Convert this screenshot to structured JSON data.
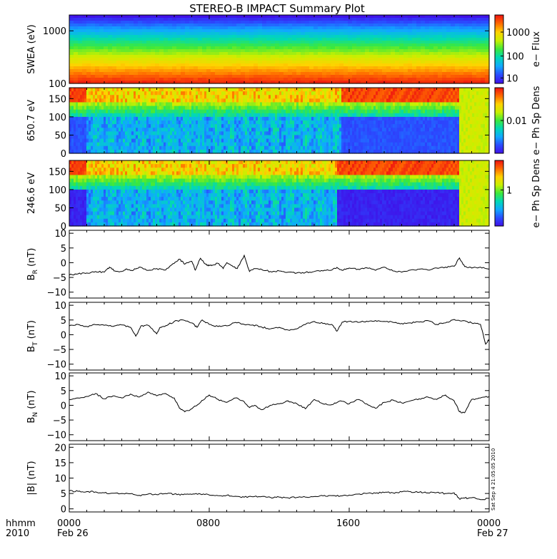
{
  "title": "STEREO-B IMPACT Summary Plot",
  "footer": {
    "row_label_1": "hhmm",
    "row_label_2": "2010",
    "tick_labels": [
      "0000",
      "0800",
      "1600",
      "0000"
    ],
    "date_labels": [
      "Feb 26",
      "Feb 27"
    ]
  },
  "timestamp": "Sat Sep  4 21:05:05 2010",
  "colors": {
    "line": "#000000",
    "colormap": [
      "#ee1111",
      "#ff6a00",
      "#ffd200",
      "#c8f000",
      "#3ce83c",
      "#00d8b8",
      "#10a8ff",
      "#2a4cff",
      "#4010e8"
    ]
  },
  "chart_data": [
    {
      "type": "heatmap",
      "name": "swea",
      "ylabel": "SWEA (eV)",
      "cbar_label": "e− Flux",
      "yscale": "log",
      "ylim": [
        100,
        2000
      ],
      "yticks": [
        "1000",
        "100"
      ],
      "ytick_values": [
        1000,
        100
      ],
      "cbar_ticks": [
        "1000",
        "100",
        "10"
      ],
      "cbar_tick_fracs": [
        0.25,
        0.6,
        0.92
      ],
      "bands_top_to_bottom": [
        0.0,
        0.1,
        0.24,
        0.38,
        0.5,
        0.62,
        0.74,
        0.84,
        0.92,
        0.97
      ]
    },
    {
      "type": "heatmap",
      "name": "pad650",
      "ylabel": "650.7 eV",
      "cbar_label": "e− Ph Sp Dens",
      "ylim": [
        0,
        180
      ],
      "yticks": [
        "150",
        "100",
        "50",
        "0"
      ],
      "ytick_values": [
        150,
        100,
        50,
        0
      ],
      "cbar_ticks": [
        "0.01"
      ],
      "cbar_tick_fracs": [
        0.5
      ],
      "quiet_intervals_hours": [
        [
          0.0,
          1.0
        ],
        [
          15.5,
          22.3
        ]
      ]
    },
    {
      "type": "heatmap",
      "name": "pad246",
      "ylabel": "246.6 eV",
      "cbar_label": "e− Ph Sp Dens",
      "ylim": [
        0,
        180
      ],
      "yticks": [
        "150",
        "100",
        "50",
        "0"
      ],
      "ytick_values": [
        150,
        100,
        50,
        0
      ],
      "cbar_ticks": [
        "1"
      ],
      "cbar_tick_fracs": [
        0.45
      ],
      "quiet_intervals_hours": [
        [
          0.0,
          1.0
        ],
        [
          15.3,
          22.3
        ]
      ]
    },
    {
      "type": "line",
      "name": "br",
      "ylabel_main": "B",
      "ylabel_sub": "R",
      "ylabel_unit": " (nT)",
      "ylim": [
        -12,
        11
      ],
      "yticks": [
        "10",
        "5",
        "0",
        "−5",
        "−10"
      ],
      "ytick_values": [
        10,
        5,
        0,
        -5,
        -10
      ],
      "x_hours": [
        0,
        0.5,
        1,
        1.5,
        2,
        2.3,
        2.6,
        3,
        3.3,
        3.6,
        4,
        4.5,
        5,
        5.5,
        6,
        6.3,
        6.6,
        7,
        7.2,
        7.5,
        7.8,
        8,
        8.2,
        8.5,
        8.8,
        9,
        9.3,
        9.6,
        10,
        10.3,
        10.6,
        11,
        11.5,
        12,
        12.5,
        13,
        13.5,
        14,
        14.5,
        15,
        15.3,
        15.6,
        16,
        16.5,
        17,
        17.5,
        18,
        18.5,
        19,
        19.5,
        20,
        20.5,
        21,
        21.5,
        22,
        22.3,
        22.6,
        23,
        23.5,
        24
      ],
      "values": [
        -4.2,
        -3.8,
        -3.5,
        -3,
        -3.2,
        -1.5,
        -2.8,
        -3,
        -2.2,
        -2.7,
        -1.5,
        -2.6,
        -2,
        -2.5,
        -0.2,
        1.2,
        -0.5,
        0.5,
        -2.5,
        1.5,
        -0.5,
        -1,
        -0.8,
        -0.2,
        -2,
        0,
        -1,
        -2,
        2.5,
        -3,
        -2,
        -2.3,
        -3,
        -2.8,
        -3.2,
        -3.5,
        -3.3,
        -3,
        -2.8,
        -2.5,
        -1.6,
        -2.6,
        -1.8,
        -2.2,
        -1.7,
        -2.6,
        -1.5,
        -2.8,
        -3.2,
        -2.5,
        -2.2,
        -2.5,
        -1.8,
        -1.5,
        -1.2,
        1.6,
        -1.3,
        -1.8,
        -1.5,
        -2.2
      ]
    },
    {
      "type": "line",
      "name": "bt",
      "ylabel_main": "B",
      "ylabel_sub": "T",
      "ylabel_unit": " (nT)",
      "ylim": [
        -12,
        11
      ],
      "yticks": [
        "10",
        "5",
        "0",
        "−5",
        "−10"
      ],
      "ytick_values": [
        10,
        5,
        0,
        -5,
        -10
      ],
      "x_hours": [
        0,
        0.5,
        1,
        1.5,
        2,
        2.5,
        3,
        3.5,
        3.8,
        4.1,
        4.5,
        5,
        5.2,
        5.5,
        6,
        6.5,
        7,
        7.3,
        7.6,
        8,
        8.5,
        9,
        9.5,
        10,
        10.5,
        11,
        11.5,
        12,
        12.5,
        13,
        13.5,
        14,
        14.5,
        15,
        15.3,
        15.6,
        16,
        16.5,
        17,
        17.5,
        18,
        18.5,
        19,
        19.5,
        20,
        20.5,
        21,
        21.5,
        22,
        22.5,
        23,
        23.5,
        23.8,
        24
      ],
      "values": [
        3,
        3.5,
        2.8,
        3.4,
        3.2,
        2.8,
        3.3,
        2.5,
        -0.5,
        3,
        3.2,
        0.3,
        2.5,
        3,
        4.5,
        5,
        4,
        2.5,
        5,
        3.5,
        2.8,
        3,
        4.2,
        3.5,
        3.3,
        2.6,
        2,
        2.5,
        1.6,
        2,
        3.5,
        4.5,
        3.8,
        3.5,
        1.2,
        4.3,
        4.5,
        4.2,
        4.6,
        4.8,
        4.5,
        4.2,
        3.8,
        4,
        4.3,
        4.8,
        3.5,
        4,
        5.2,
        4.8,
        4,
        3.5,
        -3.2,
        -1.5
      ]
    },
    {
      "type": "line",
      "name": "bn",
      "ylabel_main": "B",
      "ylabel_sub": "N",
      "ylabel_unit": " (nT)",
      "ylim": [
        -12,
        11
      ],
      "yticks": [
        "10",
        "5",
        "0",
        "−5",
        "−10"
      ],
      "ytick_values": [
        10,
        5,
        0,
        -5,
        -10
      ],
      "x_hours": [
        0,
        0.5,
        1,
        1.5,
        2,
        2.5,
        3,
        3.5,
        4,
        4.5,
        5,
        5.5,
        6,
        6.3,
        6.6,
        7,
        7.5,
        8,
        8.5,
        9,
        9.5,
        10,
        10.3,
        10.6,
        11,
        11.5,
        12,
        12.5,
        13,
        13.5,
        14,
        14.5,
        15,
        15.5,
        16,
        16.5,
        17,
        17.5,
        18,
        18.5,
        19,
        19.5,
        20,
        20.5,
        21,
        21.5,
        22,
        22.3,
        22.6,
        23,
        23.5,
        24
      ],
      "values": [
        2,
        2.5,
        3,
        4,
        2.2,
        3.2,
        2.5,
        3.8,
        2.8,
        4.5,
        3.2,
        4,
        2.5,
        -1,
        -2.2,
        -1.2,
        1,
        3.5,
        2,
        1,
        2.5,
        1.2,
        -0.8,
        0,
        -1.5,
        0,
        0.5,
        1.5,
        0.6,
        -1.2,
        2,
        0.5,
        0.2,
        1.5,
        0.5,
        2,
        0.5,
        -1,
        1,
        1.8,
        0.8,
        1.5,
        2.2,
        2.8,
        2,
        3.5,
        1.5,
        -2.2,
        -2.5,
        2,
        2.5,
        3
      ]
    },
    {
      "type": "line",
      "name": "babs",
      "ylabel": "|B| (nT)",
      "ylim": [
        -1,
        21
      ],
      "yticks": [
        "20",
        "15",
        "10",
        "5",
        "0"
      ],
      "ytick_values": [
        20,
        15,
        10,
        5,
        0
      ],
      "x_hours": [
        0,
        0.5,
        1,
        1.5,
        2,
        2.5,
        3,
        3.5,
        4,
        4.5,
        5,
        5.5,
        6,
        6.5,
        7,
        7.5,
        8,
        8.5,
        9,
        9.5,
        10,
        10.5,
        11,
        11.5,
        12,
        12.5,
        13,
        13.5,
        14,
        14.5,
        15,
        15.5,
        16,
        16.5,
        17,
        17.5,
        18,
        18.5,
        19,
        19.5,
        20,
        20.5,
        21,
        21.5,
        22,
        22.3,
        22.6,
        23,
        23.5,
        24
      ],
      "values": [
        5.8,
        5.7,
        5.6,
        5.5,
        5.2,
        5.1,
        5,
        4.9,
        4.4,
        4.8,
        4.6,
        5,
        4.8,
        4.6,
        4.7,
        4.8,
        4.5,
        4.3,
        4.4,
        4.1,
        3.8,
        3.9,
        4,
        3.7,
        3.8,
        3.6,
        3.7,
        3.8,
        4,
        4.2,
        4.3,
        4.2,
        4.5,
        4.8,
        5,
        5.1,
        5.3,
        5.2,
        5.5,
        5.6,
        5.4,
        5.2,
        5.3,
        5,
        5.2,
        3.2,
        3.5,
        3.6,
        3,
        3.4
      ]
    }
  ]
}
